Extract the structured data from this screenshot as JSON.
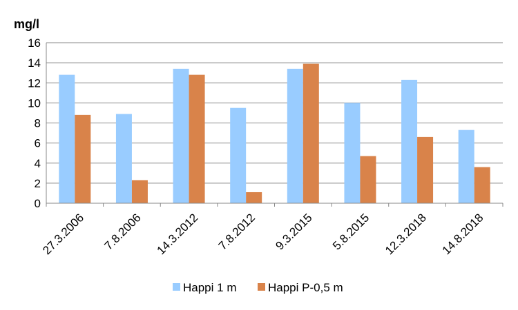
{
  "chart_data": {
    "type": "bar",
    "title": "",
    "ylabel": "mg/l",
    "xlabel": "",
    "ylim": [
      0,
      16
    ],
    "ytick_step": 2,
    "grid": true,
    "legend_position": "bottom",
    "categories": [
      "27.3.2006",
      "7.8.2006",
      "14.3.2012",
      "7.8.2012",
      "9.3.2015",
      "5.8.2015",
      "12.3.2018",
      "14.8.2018"
    ],
    "series": [
      {
        "name": "Happi 1 m",
        "color": "#99CCFF",
        "values": [
          12.8,
          8.9,
          13.4,
          9.5,
          13.4,
          10.0,
          12.3,
          7.3
        ]
      },
      {
        "name": "Happi P-0,5 m",
        "color": "#D9834A",
        "values": [
          8.8,
          2.3,
          12.8,
          1.1,
          13.9,
          4.7,
          6.6,
          3.6
        ]
      }
    ]
  }
}
